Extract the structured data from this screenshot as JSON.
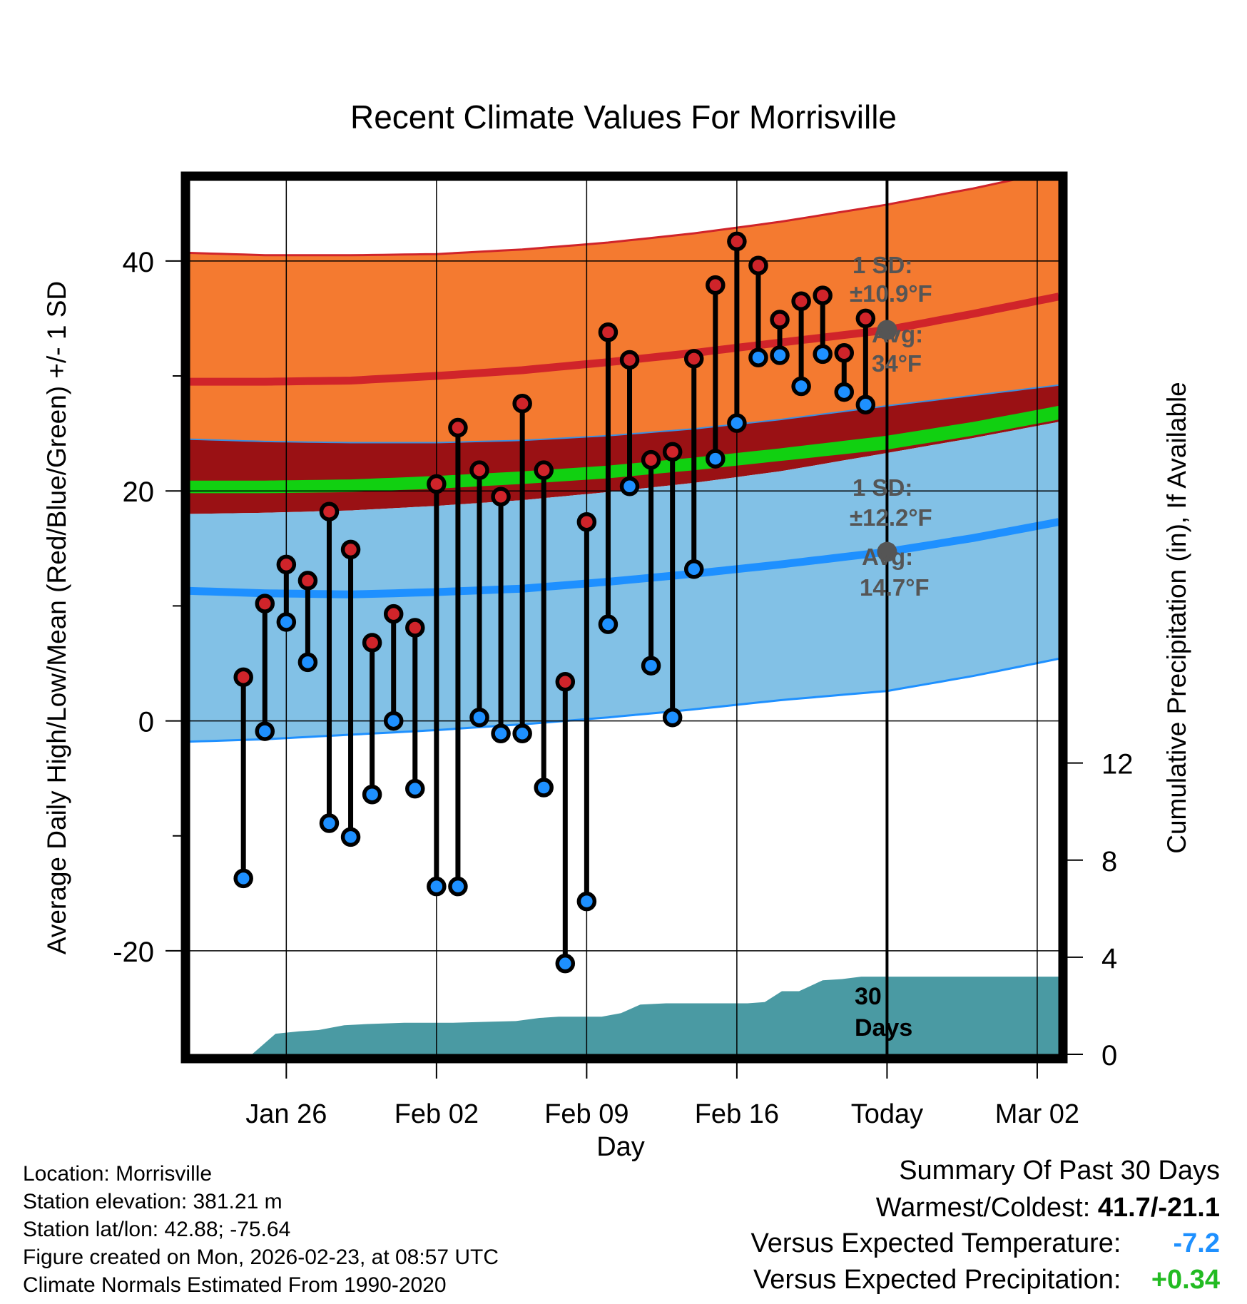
{
  "chart_data": {
    "type": "line",
    "title": "Recent Climate Values For Morrisville",
    "xlabel": "Day",
    "ylabel_left": "Average Daily High/Low/Mean (Red/Blue/Green) +/- 1 SD",
    "ylabel_right": "Cumulative Precipitation (in), If Available",
    "x_day_range": [
      -29.5,
      11
    ],
    "ylim_left": [
      -29,
      47
    ],
    "ylim_right": [
      0,
      36
    ],
    "x_ticks": [
      {
        "day": -25,
        "label": "Jan 26"
      },
      {
        "day": -18,
        "label": "Feb 02"
      },
      {
        "day": -11,
        "label": "Feb 09"
      },
      {
        "day": -4,
        "label": "Feb 16"
      },
      {
        "day": 3,
        "label": "Today"
      },
      {
        "day": 10,
        "label": "Mar 02"
      }
    ],
    "y_ticks_left": [
      {
        "value": 40,
        "label": "40"
      },
      {
        "value": 20,
        "label": "20"
      },
      {
        "value": 0,
        "label": "0"
      },
      {
        "value": -20,
        "label": "-20"
      }
    ],
    "y_minor_left": [
      30,
      10,
      -10
    ],
    "y_ticks_right": [
      {
        "value": 0,
        "label": "0"
      },
      {
        "value": 4,
        "label": "4"
      },
      {
        "value": 8,
        "label": "8"
      },
      {
        "value": 12,
        "label": "12"
      }
    ],
    "today_day": 3,
    "normals": {
      "days": [
        -29.5,
        -26,
        -22,
        -18,
        -14,
        -10,
        -6,
        -2,
        3,
        7,
        11
      ],
      "high_plus_sd": [
        40.7,
        40.5,
        40.5,
        40.6,
        41.0,
        41.6,
        42.4,
        43.4,
        44.9,
        46.3,
        47.9
      ],
      "high_avg": [
        29.5,
        29.5,
        29.6,
        30.0,
        30.5,
        31.2,
        32.0,
        32.9,
        34.0,
        35.4,
        36.9
      ],
      "high_minus_sd": [
        24.5,
        24.3,
        24.2,
        24.2,
        24.4,
        24.8,
        25.4,
        26.2,
        27.4,
        28.3,
        29.2
      ],
      "mean_plus": [
        20.9,
        20.9,
        21.0,
        21.3,
        21.7,
        22.2,
        22.9,
        23.7,
        24.8,
        26.0,
        27.4
      ],
      "mean_minus": [
        19.8,
        19.8,
        19.9,
        20.2,
        20.6,
        21.1,
        21.8,
        22.6,
        23.6,
        24.8,
        26.2
      ],
      "low_plus_sd": [
        18.0,
        18.1,
        18.3,
        18.7,
        19.2,
        19.9,
        20.7,
        21.7,
        23.3,
        24.6,
        26.0
      ],
      "low_avg": [
        11.3,
        11.1,
        11.0,
        11.2,
        11.5,
        12.1,
        12.8,
        13.6,
        14.7,
        15.9,
        17.3
      ],
      "low_minus_sd": [
        -1.8,
        -1.6,
        -1.2,
        -0.8,
        -0.3,
        0.3,
        1.0,
        1.8,
        2.6,
        3.9,
        5.4
      ]
    },
    "daily_days": [
      -27,
      -26,
      -25,
      -24,
      -23,
      -22,
      -21,
      -20,
      -19,
      -18,
      -17,
      -16,
      -15,
      -14,
      -13,
      -12,
      -11,
      -10,
      -9,
      -8,
      -7,
      -6,
      -5,
      -4,
      -3,
      -2,
      -1,
      0,
      1,
      2
    ],
    "daily_high": [
      3.8,
      10.2,
      13.6,
      12.2,
      18.2,
      14.9,
      6.8,
      9.3,
      8.1,
      20.6,
      25.5,
      21.8,
      19.5,
      27.6,
      21.8,
      3.4,
      17.3,
      33.8,
      31.4,
      22.7,
      23.4,
      31.5,
      37.9,
      41.7,
      39.6,
      34.9,
      36.5,
      37.0,
      32.0,
      35.0
    ],
    "daily_low": [
      -13.7,
      -0.9,
      8.6,
      5.1,
      -8.9,
      -10.1,
      -6.4,
      0.0,
      -5.9,
      -14.4,
      -14.4,
      0.3,
      -1.1,
      -1.1,
      -5.8,
      -21.1,
      -15.7,
      8.4,
      20.4,
      4.8,
      0.3,
      13.2,
      22.8,
      25.9,
      31.6,
      31.8,
      29.1,
      31.9,
      28.6,
      27.5
    ],
    "precip": {
      "days": [
        -27.6,
        -26.6,
        -25.5,
        -24.4,
        -23.5,
        -22.3,
        -21.2,
        -19.5,
        -18.5,
        -17.3,
        -16.5,
        -15.3,
        -14.3,
        -13.2,
        -12.3,
        -11.2,
        -10.3,
        -9.4,
        -8.5,
        -7.3,
        -6.5,
        -5.3,
        -4.4,
        -3.5,
        -2.7,
        -1.9,
        -1.1,
        0.0,
        0.9,
        1.8,
        3.0,
        11.0
      ],
      "values": [
        0.0,
        0.0,
        0.85,
        0.95,
        1.0,
        1.2,
        1.25,
        1.3,
        1.3,
        1.3,
        1.32,
        1.35,
        1.37,
        1.5,
        1.55,
        1.55,
        1.55,
        1.7,
        2.05,
        2.1,
        2.1,
        2.1,
        2.1,
        2.1,
        2.15,
        2.6,
        2.6,
        3.05,
        3.1,
        3.2,
        3.2,
        3.2
      ]
    },
    "annotations": {
      "high_sd_label": "1 SD:",
      "high_sd_value": "±10.9°F",
      "high_avg_label": "Avg:",
      "high_avg_value": "34°F",
      "low_sd_label": "1 SD:",
      "low_sd_value": "±12.2°F",
      "low_avg_label": "Avg:",
      "low_avg_value": "14.7°F",
      "window_number": "30",
      "window_unit": "Days"
    },
    "colors": {
      "high_band": "#f47a30",
      "high_line": "#d0242a",
      "mean_band": "#9a1114",
      "mean_line": "#11d011",
      "low_band": "#82c1e6",
      "low_line": "#1e90ff",
      "precip": "#4a9aa3",
      "high_dot": "#d0242a",
      "low_dot": "#1e90ff",
      "annotation": "#555555"
    }
  },
  "info": {
    "location": "Location: Morrisville",
    "elevation": "Station elevation: 381.21 m",
    "latlon": "Station lat/lon: 42.88; -75.64",
    "created": "Figure created on Mon, 2026-02-23, at 08:57 UTC",
    "normals": "Climate Normals Estimated From 1990-2020"
  },
  "summary": {
    "title": "Summary Of Past 30 Days",
    "warm_cold_label": "Warmest/Coldest:",
    "warm_cold_value": "41.7/-21.1",
    "temp_label": "Versus Expected Temperature:",
    "temp_value": "-7.2",
    "temp_color": "#1e90ff",
    "precip_label": "Versus Expected Precipitation:",
    "precip_value": "+0.34",
    "precip_color": "#22bb22"
  }
}
